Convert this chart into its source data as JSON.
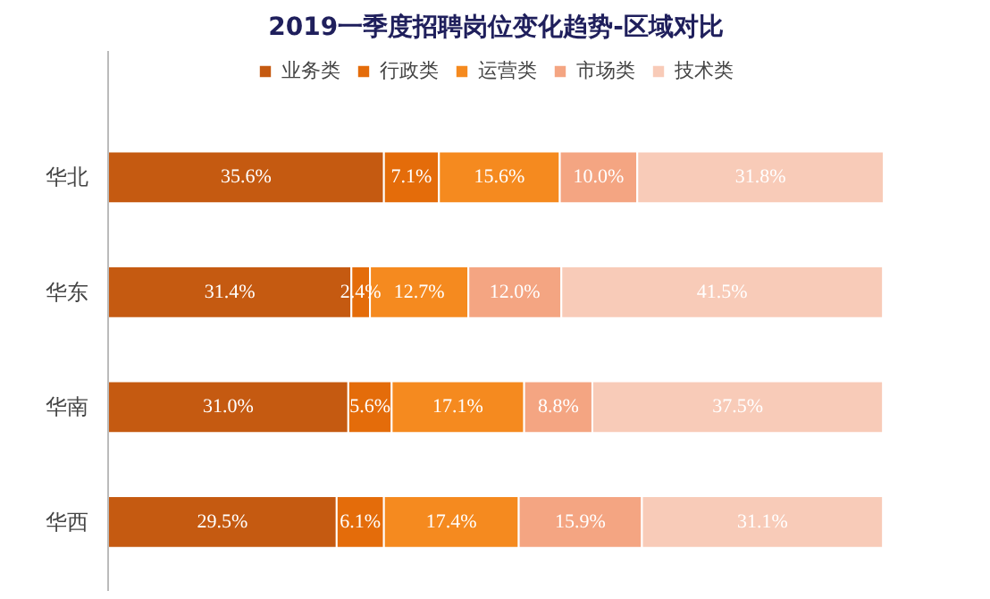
{
  "chart_data": {
    "type": "bar",
    "title": "2019一季度招聘岗位变化趋势-区域对比",
    "orientation": "horizontal",
    "stacked": true,
    "legend": "top",
    "grid": false,
    "tick_labels": "y",
    "categories": [
      "华北",
      "华东",
      "华南",
      "华西"
    ],
    "series": [
      {
        "name": "业务类",
        "color": "#c55a11",
        "values": [
          35.6,
          31.4,
          31.0,
          29.5
        ],
        "value_labels": [
          "35.6%",
          "31.4%",
          "31.0%",
          "29.5%"
        ]
      },
      {
        "name": "行政类",
        "color": "#e46c0a",
        "values": [
          7.1,
          2.4,
          5.6,
          6.1
        ],
        "value_labels": [
          "7.1%",
          "2.4%",
          "5.6%",
          "6.1%"
        ]
      },
      {
        "name": "运营类",
        "color": "#f58a1f",
        "values": [
          15.6,
          12.7,
          17.1,
          17.4
        ],
        "value_labels": [
          "15.6%",
          "12.7%",
          "17.1%",
          "17.4%"
        ]
      },
      {
        "name": "市场类",
        "color": "#f4a582",
        "values": [
          10.0,
          12.0,
          8.8,
          15.9
        ],
        "value_labels": [
          "10.0%",
          "12.0%",
          "8.8%",
          "15.9%"
        ]
      },
      {
        "name": "技术类",
        "color": "#f8cbb8",
        "values": [
          31.8,
          41.5,
          37.5,
          31.1
        ],
        "value_labels": [
          "31.8%",
          "41.5%",
          "37.5%",
          "31.1%"
        ]
      }
    ]
  }
}
